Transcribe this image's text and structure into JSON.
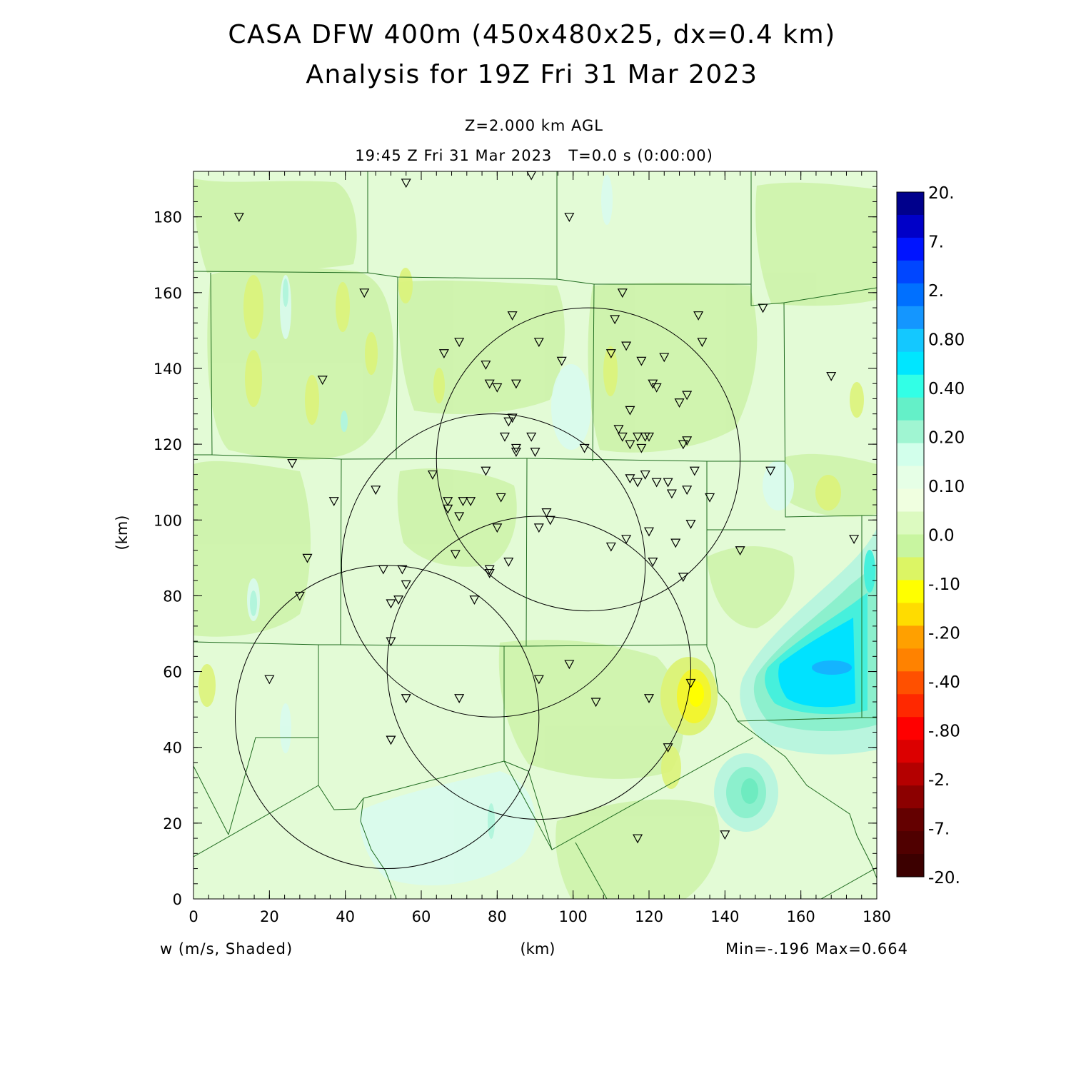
{
  "title_line1": "CASA DFW 400m (450x480x25, dx=0.4 km)",
  "title_line2": "Analysis for 19Z Fri 31 Mar 2023",
  "level_label": "Z=2.000 km AGL",
  "time_label": "19:45 Z Fri 31 Mar 2023   T=0.0 s (0:00:00)",
  "variable_label": "w (m/s, Shaded)",
  "minmax_label": "Min=-.196 Max=0.664",
  "x_axis": {
    "label": "(km)",
    "min": 0,
    "max": 180,
    "ticks": [
      0,
      20,
      40,
      60,
      80,
      100,
      120,
      140,
      160,
      180
    ]
  },
  "y_axis": {
    "label": "(km)",
    "min": 0,
    "max": 192,
    "ticks": [
      0,
      20,
      40,
      60,
      80,
      100,
      120,
      140,
      160,
      180
    ]
  },
  "colorbar": {
    "labels": [
      "20.",
      "7.",
      "2.",
      "0.80",
      "0.40",
      "0.20",
      "0.10",
      "0.0",
      "-.10",
      "-.20",
      "-.40",
      "-.80",
      "-2.",
      "-7.",
      "-20."
    ],
    "colors": [
      "#00008c",
      "#0000c8",
      "#0014ff",
      "#0046ff",
      "#0070ff",
      "#1496ff",
      "#14c8ff",
      "#00e6ff",
      "#32ffe6",
      "#64f0c8",
      "#a0f5d2",
      "#d2ffeb",
      "#e6ffe6",
      "#f0ffe0",
      "#dcfac0",
      "#c8f5a0",
      "#dcf564",
      "#ffff00",
      "#ffdc00",
      "#ffa000",
      "#ff8200",
      "#ff5000",
      "#ff2800",
      "#ff0000",
      "#dc0000",
      "#b40000",
      "#8c0000",
      "#640000",
      "#500000",
      "#3c0000"
    ]
  },
  "stations": [
    [
      12,
      180
    ],
    [
      56,
      189
    ],
    [
      89,
      191
    ],
    [
      99,
      180
    ],
    [
      45,
      160
    ],
    [
      113,
      160
    ],
    [
      84,
      154
    ],
    [
      111,
      153
    ],
    [
      133,
      154
    ],
    [
      150,
      156
    ],
    [
      34,
      137
    ],
    [
      66,
      144
    ],
    [
      70,
      147
    ],
    [
      77,
      141
    ],
    [
      91,
      147
    ],
    [
      97,
      142
    ],
    [
      110,
      144
    ],
    [
      114,
      146
    ],
    [
      118,
      142
    ],
    [
      124,
      143
    ],
    [
      134,
      147
    ],
    [
      168,
      138
    ],
    [
      78,
      136
    ],
    [
      80,
      135
    ],
    [
      85,
      136
    ],
    [
      115,
      129
    ],
    [
      121,
      136
    ],
    [
      122,
      135
    ],
    [
      128,
      131
    ],
    [
      130,
      133
    ],
    [
      84,
      127
    ],
    [
      83,
      126
    ],
    [
      82,
      122
    ],
    [
      89,
      122
    ],
    [
      85,
      119
    ],
    [
      85,
      118
    ],
    [
      90,
      118
    ],
    [
      103,
      119
    ],
    [
      112,
      124
    ],
    [
      113,
      122
    ],
    [
      115,
      120
    ],
    [
      117,
      122
    ],
    [
      119,
      122
    ],
    [
      120,
      122
    ],
    [
      118,
      119
    ],
    [
      129,
      120
    ],
    [
      130,
      121
    ],
    [
      26,
      115
    ],
    [
      63,
      112
    ],
    [
      77,
      113
    ],
    [
      152,
      113
    ],
    [
      48,
      108
    ],
    [
      67,
      105
    ],
    [
      67,
      103
    ],
    [
      71,
      105
    ],
    [
      73,
      105
    ],
    [
      81,
      106
    ],
    [
      115,
      111
    ],
    [
      117,
      110
    ],
    [
      119,
      112
    ],
    [
      122,
      110
    ],
    [
      125,
      110
    ],
    [
      126,
      107
    ],
    [
      130,
      108
    ],
    [
      132,
      113
    ],
    [
      136,
      106
    ],
    [
      37,
      105
    ],
    [
      70,
      101
    ],
    [
      93,
      102
    ],
    [
      94,
      100
    ],
    [
      91,
      98
    ],
    [
      80,
      98
    ],
    [
      114,
      95
    ],
    [
      120,
      97
    ],
    [
      127,
      94
    ],
    [
      131,
      99
    ],
    [
      144,
      92
    ],
    [
      174,
      95
    ],
    [
      30,
      90
    ],
    [
      69,
      91
    ],
    [
      83,
      89
    ],
    [
      110,
      93
    ],
    [
      121,
      89
    ],
    [
      78,
      86
    ],
    [
      78,
      87
    ],
    [
      50,
      87
    ],
    [
      55,
      87
    ],
    [
      56,
      83
    ],
    [
      28,
      80
    ],
    [
      54,
      79
    ],
    [
      52,
      78
    ],
    [
      74,
      79
    ],
    [
      129,
      85
    ],
    [
      52,
      68
    ],
    [
      20,
      58
    ],
    [
      91,
      58
    ],
    [
      99,
      62
    ],
    [
      56,
      53
    ],
    [
      70,
      53
    ],
    [
      106,
      52
    ],
    [
      120,
      53
    ],
    [
      131,
      57
    ],
    [
      52,
      42
    ],
    [
      125,
      40
    ],
    [
      117,
      16
    ],
    [
      140,
      17
    ]
  ],
  "radar_rings": [
    {
      "cx": 104,
      "cy": 116,
      "r": 40
    },
    {
      "cx": 79,
      "cy": 88,
      "r": 40
    },
    {
      "cx": 91,
      "cy": 61,
      "r": 40
    },
    {
      "cx": 51,
      "cy": 48,
      "r": 40
    }
  ]
}
